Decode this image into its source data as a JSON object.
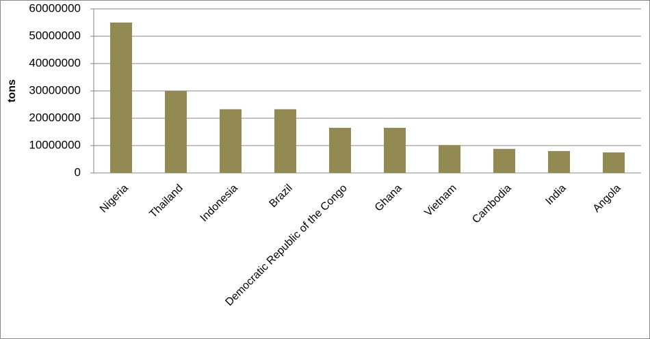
{
  "chart_data": {
    "type": "bar",
    "y_label": "tons",
    "categories": [
      "Nigeria",
      "Thailand",
      "Indonesia",
      "Brazil",
      "Democratic Republic of the Congo",
      "Ghana",
      "Vietnam",
      "Cambodia",
      "India",
      "Angola"
    ],
    "values": [
      55000000,
      30000000,
      23300000,
      23300000,
      16500000,
      16500000,
      10200000,
      8800000,
      8000000,
      7500000
    ],
    "color": "#938953",
    "ylim": [
      0,
      60000000
    ],
    "yticks": [
      0,
      10000000,
      20000000,
      30000000,
      40000000,
      50000000,
      60000000
    ],
    "grid": true
  }
}
